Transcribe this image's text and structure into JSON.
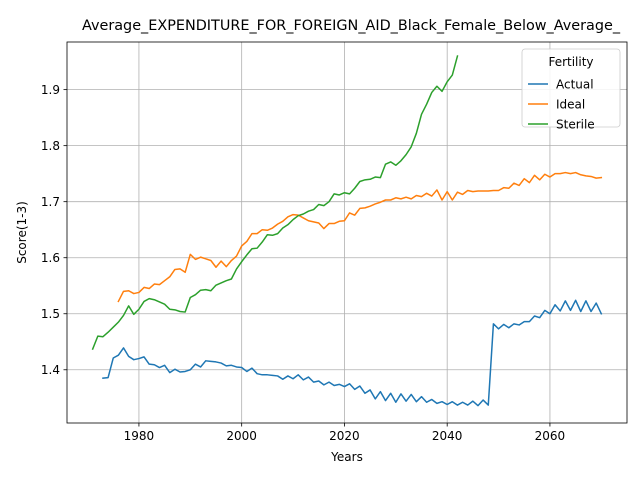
{
  "chart_data": {
    "type": "line",
    "title": "Average_EXPENDITURE_FOR_FOREIGN_AID_Black_Female_Below_Average_",
    "xlabel": "Years",
    "ylabel": "Score(1-3)",
    "xlim": [
      1966,
      2075
    ],
    "ylim": [
      1.305,
      1.985
    ],
    "xticks": [
      1980,
      2000,
      2020,
      2040,
      2060
    ],
    "yticks": [
      1.4,
      1.5,
      1.6,
      1.7,
      1.8,
      1.9
    ],
    "grid": true,
    "legend": {
      "title": "Fertility",
      "position": "top-right"
    },
    "series": [
      {
        "name": "Actual",
        "color": "#1f77b4",
        "points": [
          [
            1973,
            1.385
          ],
          [
            1974,
            1.386
          ],
          [
            1975,
            1.421
          ],
          [
            1976,
            1.426
          ],
          [
            1977,
            1.439
          ],
          [
            1978,
            1.424
          ],
          [
            1979,
            1.418
          ],
          [
            1980,
            1.42
          ],
          [
            1981,
            1.423
          ],
          [
            1982,
            1.41
          ],
          [
            1983,
            1.409
          ],
          [
            1984,
            1.404
          ],
          [
            1985,
            1.408
          ],
          [
            1986,
            1.395
          ],
          [
            1987,
            1.401
          ],
          [
            1988,
            1.396
          ],
          [
            1989,
            1.397
          ],
          [
            1990,
            1.4
          ],
          [
            1991,
            1.41
          ],
          [
            1992,
            1.405
          ],
          [
            1993,
            1.416
          ],
          [
            1994,
            1.415
          ],
          [
            1995,
            1.414
          ],
          [
            1996,
            1.412
          ],
          [
            1997,
            1.407
          ],
          [
            1998,
            1.408
          ],
          [
            1999,
            1.405
          ],
          [
            2000,
            1.404
          ],
          [
            2001,
            1.397
          ],
          [
            2002,
            1.403
          ],
          [
            2003,
            1.393
          ],
          [
            2004,
            1.391
          ],
          [
            2005,
            1.391
          ],
          [
            2006,
            1.39
          ],
          [
            2007,
            1.389
          ],
          [
            2008,
            1.383
          ],
          [
            2009,
            1.389
          ],
          [
            2010,
            1.384
          ],
          [
            2011,
            1.391
          ],
          [
            2012,
            1.382
          ],
          [
            2013,
            1.387
          ],
          [
            2014,
            1.378
          ],
          [
            2015,
            1.38
          ],
          [
            2016,
            1.373
          ],
          [
            2017,
            1.378
          ],
          [
            2018,
            1.372
          ],
          [
            2019,
            1.374
          ],
          [
            2020,
            1.37
          ],
          [
            2021,
            1.375
          ],
          [
            2022,
            1.365
          ],
          [
            2023,
            1.371
          ],
          [
            2024,
            1.358
          ],
          [
            2025,
            1.364
          ],
          [
            2026,
            1.348
          ],
          [
            2027,
            1.361
          ],
          [
            2028,
            1.345
          ],
          [
            2029,
            1.358
          ],
          [
            2030,
            1.342
          ],
          [
            2031,
            1.357
          ],
          [
            2032,
            1.344
          ],
          [
            2033,
            1.356
          ],
          [
            2034,
            1.343
          ],
          [
            2035,
            1.352
          ],
          [
            2036,
            1.342
          ],
          [
            2037,
            1.347
          ],
          [
            2038,
            1.34
          ],
          [
            2039,
            1.343
          ],
          [
            2040,
            1.338
          ],
          [
            2041,
            1.343
          ],
          [
            2042,
            1.337
          ],
          [
            2043,
            1.342
          ],
          [
            2044,
            1.337
          ],
          [
            2045,
            1.344
          ],
          [
            2046,
            1.336
          ],
          [
            2047,
            1.346
          ],
          [
            2048,
            1.337
          ],
          [
            2049,
            1.482
          ],
          [
            2050,
            1.473
          ],
          [
            2051,
            1.481
          ],
          [
            2052,
            1.475
          ],
          [
            2053,
            1.482
          ],
          [
            2054,
            1.48
          ],
          [
            2055,
            1.486
          ],
          [
            2056,
            1.486
          ],
          [
            2057,
            1.496
          ],
          [
            2058,
            1.493
          ],
          [
            2059,
            1.506
          ],
          [
            2060,
            1.5
          ],
          [
            2061,
            1.516
          ],
          [
            2062,
            1.505
          ],
          [
            2063,
            1.523
          ],
          [
            2064,
            1.506
          ],
          [
            2065,
            1.524
          ],
          [
            2066,
            1.504
          ],
          [
            2067,
            1.523
          ],
          [
            2068,
            1.504
          ],
          [
            2069,
            1.519
          ],
          [
            2070,
            1.5
          ]
        ]
      },
      {
        "name": "Ideal",
        "color": "#ff7f0e",
        "points": [
          [
            1976,
            1.522
          ],
          [
            1977,
            1.54
          ],
          [
            1978,
            1.541
          ],
          [
            1979,
            1.536
          ],
          [
            1980,
            1.538
          ],
          [
            1981,
            1.547
          ],
          [
            1982,
            1.545
          ],
          [
            1983,
            1.553
          ],
          [
            1984,
            1.552
          ],
          [
            1985,
            1.559
          ],
          [
            1986,
            1.566
          ],
          [
            1987,
            1.579
          ],
          [
            1988,
            1.58
          ],
          [
            1989,
            1.574
          ],
          [
            1990,
            1.606
          ],
          [
            1991,
            1.597
          ],
          [
            1992,
            1.601
          ],
          [
            1993,
            1.598
          ],
          [
            1994,
            1.595
          ],
          [
            1995,
            1.583
          ],
          [
            1996,
            1.594
          ],
          [
            1997,
            1.584
          ],
          [
            1998,
            1.595
          ],
          [
            1999,
            1.603
          ],
          [
            2000,
            1.621
          ],
          [
            2001,
            1.629
          ],
          [
            2002,
            1.643
          ],
          [
            2003,
            1.643
          ],
          [
            2004,
            1.65
          ],
          [
            2005,
            1.649
          ],
          [
            2006,
            1.653
          ],
          [
            2007,
            1.66
          ],
          [
            2008,
            1.665
          ],
          [
            2009,
            1.673
          ],
          [
            2010,
            1.677
          ],
          [
            2011,
            1.676
          ],
          [
            2012,
            1.671
          ],
          [
            2013,
            1.666
          ],
          [
            2014,
            1.664
          ],
          [
            2015,
            1.662
          ],
          [
            2016,
            1.652
          ],
          [
            2017,
            1.661
          ],
          [
            2018,
            1.661
          ],
          [
            2019,
            1.665
          ],
          [
            2020,
            1.666
          ],
          [
            2021,
            1.68
          ],
          [
            2022,
            1.676
          ],
          [
            2023,
            1.688
          ],
          [
            2024,
            1.689
          ],
          [
            2025,
            1.692
          ],
          [
            2026,
            1.696
          ],
          [
            2027,
            1.699
          ],
          [
            2028,
            1.703
          ],
          [
            2029,
            1.703
          ],
          [
            2030,
            1.707
          ],
          [
            2031,
            1.705
          ],
          [
            2032,
            1.708
          ],
          [
            2033,
            1.705
          ],
          [
            2034,
            1.711
          ],
          [
            2035,
            1.709
          ],
          [
            2036,
            1.715
          ],
          [
            2037,
            1.71
          ],
          [
            2038,
            1.721
          ],
          [
            2039,
            1.703
          ],
          [
            2040,
            1.718
          ],
          [
            2041,
            1.703
          ],
          [
            2042,
            1.717
          ],
          [
            2043,
            1.713
          ],
          [
            2044,
            1.72
          ],
          [
            2045,
            1.718
          ],
          [
            2046,
            1.719
          ],
          [
            2047,
            1.719
          ],
          [
            2048,
            1.719
          ],
          [
            2049,
            1.72
          ],
          [
            2050,
            1.72
          ],
          [
            2051,
            1.725
          ],
          [
            2052,
            1.724
          ],
          [
            2053,
            1.733
          ],
          [
            2054,
            1.729
          ],
          [
            2055,
            1.741
          ],
          [
            2056,
            1.734
          ],
          [
            2057,
            1.747
          ],
          [
            2058,
            1.739
          ],
          [
            2059,
            1.749
          ],
          [
            2060,
            1.744
          ],
          [
            2061,
            1.75
          ],
          [
            2062,
            1.75
          ],
          [
            2063,
            1.752
          ],
          [
            2064,
            1.75
          ],
          [
            2065,
            1.752
          ],
          [
            2066,
            1.748
          ],
          [
            2067,
            1.746
          ],
          [
            2068,
            1.745
          ],
          [
            2069,
            1.742
          ],
          [
            2070,
            1.743
          ]
        ]
      },
      {
        "name": "Sterile",
        "color": "#2ca02c",
        "points": [
          [
            1971,
            1.437
          ],
          [
            1972,
            1.46
          ],
          [
            1973,
            1.459
          ],
          [
            1974,
            1.467
          ],
          [
            1975,
            1.476
          ],
          [
            1976,
            1.485
          ],
          [
            1977,
            1.497
          ],
          [
            1978,
            1.514
          ],
          [
            1979,
            1.499
          ],
          [
            1980,
            1.508
          ],
          [
            1981,
            1.522
          ],
          [
            1982,
            1.527
          ],
          [
            1983,
            1.525
          ],
          [
            1984,
            1.521
          ],
          [
            1985,
            1.517
          ],
          [
            1986,
            1.508
          ],
          [
            1987,
            1.507
          ],
          [
            1988,
            1.504
          ],
          [
            1989,
            1.503
          ],
          [
            1990,
            1.529
          ],
          [
            1991,
            1.534
          ],
          [
            1992,
            1.542
          ],
          [
            1993,
            1.543
          ],
          [
            1994,
            1.541
          ],
          [
            1995,
            1.551
          ],
          [
            1996,
            1.555
          ],
          [
            1997,
            1.559
          ],
          [
            1998,
            1.562
          ],
          [
            1999,
            1.58
          ],
          [
            2000,
            1.593
          ],
          [
            2001,
            1.605
          ],
          [
            2002,
            1.616
          ],
          [
            2003,
            1.617
          ],
          [
            2004,
            1.628
          ],
          [
            2005,
            1.641
          ],
          [
            2006,
            1.64
          ],
          [
            2007,
            1.643
          ],
          [
            2008,
            1.653
          ],
          [
            2009,
            1.659
          ],
          [
            2010,
            1.668
          ],
          [
            2011,
            1.675
          ],
          [
            2012,
            1.678
          ],
          [
            2013,
            1.683
          ],
          [
            2014,
            1.686
          ],
          [
            2015,
            1.695
          ],
          [
            2016,
            1.693
          ],
          [
            2017,
            1.7
          ],
          [
            2018,
            1.714
          ],
          [
            2019,
            1.712
          ],
          [
            2020,
            1.716
          ],
          [
            2021,
            1.714
          ],
          [
            2022,
            1.724
          ],
          [
            2023,
            1.736
          ],
          [
            2024,
            1.739
          ],
          [
            2025,
            1.74
          ],
          [
            2026,
            1.744
          ],
          [
            2027,
            1.743
          ],
          [
            2028,
            1.767
          ],
          [
            2029,
            1.771
          ],
          [
            2030,
            1.765
          ],
          [
            2031,
            1.773
          ],
          [
            2032,
            1.784
          ],
          [
            2033,
            1.798
          ],
          [
            2034,
            1.822
          ],
          [
            2035,
            1.856
          ],
          [
            2036,
            1.874
          ],
          [
            2037,
            1.895
          ],
          [
            2038,
            1.906
          ],
          [
            2039,
            1.897
          ],
          [
            2040,
            1.914
          ],
          [
            2041,
            1.926
          ],
          [
            2042,
            1.96
          ]
        ]
      }
    ]
  }
}
